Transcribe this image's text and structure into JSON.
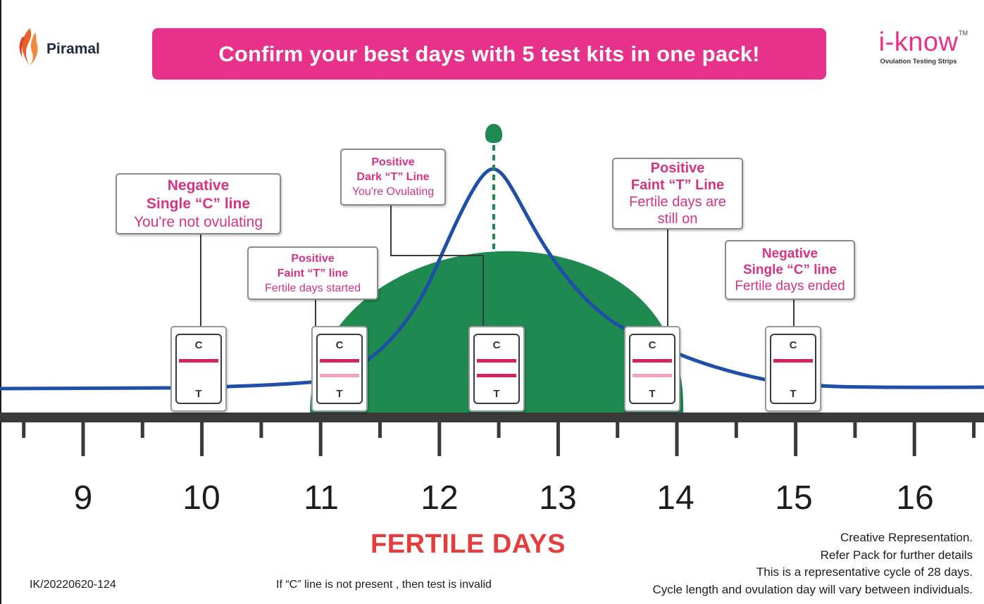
{
  "header": {
    "brand_left": "Piramal",
    "banner": "Confirm your best days with 5 test kits in one pack!",
    "brand_right": "i-know",
    "brand_right_tm": "TM",
    "brand_right_sub": "Ovulation Testing Strips"
  },
  "callouts": [
    {
      "line1": "Negative",
      "line2": "Single “C” line",
      "line3": "You're not ovulating"
    },
    {
      "line1": "Positive",
      "line2": "Faint “T” line",
      "line3": "Fertile days started"
    },
    {
      "line1": "Positive",
      "line2": "Dark “T” Line",
      "line3": "You're Ovulating"
    },
    {
      "line1": "Positive",
      "line2": "Faint “T” Line",
      "line3": "Fertile days are",
      "line4": "still on"
    },
    {
      "line1": "Negative",
      "line2": "Single “C” line",
      "line3": "Fertile days ended"
    }
  ],
  "kits": [
    {
      "c_label": "C",
      "t_label": "T",
      "t_line": "none"
    },
    {
      "c_label": "C",
      "t_label": "T",
      "t_line": "faint"
    },
    {
      "c_label": "C",
      "t_label": "T",
      "t_line": "dark"
    },
    {
      "c_label": "C",
      "t_label": "T",
      "t_line": "faint"
    },
    {
      "c_label": "C",
      "t_label": "T",
      "t_line": "none"
    }
  ],
  "axis": {
    "days": [
      "9",
      "10",
      "11",
      "12",
      "13",
      "14",
      "15",
      "16"
    ]
  },
  "footer": {
    "fertile_days": "FERTILE DAYS",
    "id": "IK/20220620-124",
    "invalid_note": "If “C” line is not present , then test is invalid",
    "notes": [
      "Creative Representation.",
      "Refer Pack for further details",
      "This is a representative cycle of 28 days.",
      "Cycle length and ovulation day will vary between individuals."
    ]
  },
  "colors": {
    "pink": "#e8318a",
    "callout_text": "#d63384",
    "green": "#1e8a4f",
    "curve_blue": "#1f4fa8",
    "c_line": "#d4245f",
    "t_faint": "#f0a4bd",
    "t_dark": "#d4245f",
    "fertile_red": "#e63c3c"
  }
}
